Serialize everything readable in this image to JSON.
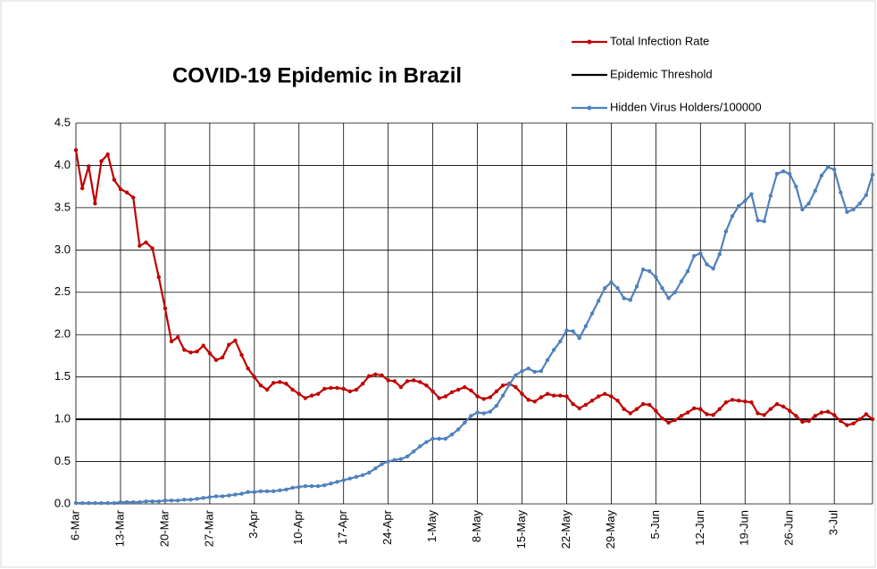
{
  "chart_data": {
    "type": "line",
    "title": "COVID-19 Epidemic in Brazil",
    "categories": [
      "6-Mar",
      null,
      null,
      null,
      null,
      null,
      null,
      "13-Mar",
      null,
      null,
      null,
      null,
      null,
      null,
      "20-Mar",
      null,
      null,
      null,
      null,
      null,
      null,
      "27-Mar",
      null,
      null,
      null,
      null,
      null,
      null,
      "3-Apr",
      null,
      null,
      null,
      null,
      null,
      null,
      "10-Apr",
      null,
      null,
      null,
      null,
      null,
      null,
      "17-Apr",
      null,
      null,
      null,
      null,
      null,
      null,
      "24-Apr",
      null,
      null,
      null,
      null,
      null,
      null,
      "1-May",
      null,
      null,
      null,
      null,
      null,
      null,
      "8-May",
      null,
      null,
      null,
      null,
      null,
      null,
      "15-May",
      null,
      null,
      null,
      null,
      null,
      null,
      "22-May",
      null,
      null,
      null,
      null,
      null,
      null,
      "29-May",
      null,
      null,
      null,
      null,
      null,
      null,
      "5-Jun",
      null,
      null,
      null,
      null,
      null,
      null,
      "12-Jun",
      null,
      null,
      null,
      null,
      null,
      null,
      "19-Jun",
      null,
      null,
      null,
      null,
      null,
      null,
      "26-Jun",
      null,
      null,
      null,
      null,
      null,
      null,
      "3-Jul",
      null,
      null,
      null,
      null,
      null,
      null
    ],
    "series": [
      {
        "name": "Total Infection Rate",
        "color": "#c00000",
        "values": [
          4.18,
          3.73,
          3.99,
          3.55,
          4.05,
          4.13,
          3.83,
          3.72,
          3.68,
          3.62,
          3.05,
          3.09,
          3.02,
          2.68,
          2.31,
          1.92,
          1.97,
          1.82,
          1.79,
          1.8,
          1.87,
          1.78,
          1.7,
          1.73,
          1.88,
          1.93,
          1.76,
          1.6,
          1.5,
          1.4,
          1.35,
          1.43,
          1.44,
          1.42,
          1.35,
          1.3,
          1.25,
          1.28,
          1.3,
          1.36,
          1.37,
          1.37,
          1.36,
          1.33,
          1.35,
          1.42,
          1.51,
          1.53,
          1.52,
          1.46,
          1.45,
          1.38,
          1.45,
          1.46,
          1.44,
          1.4,
          1.33,
          1.25,
          1.27,
          1.32,
          1.35,
          1.38,
          1.34,
          1.27,
          1.24,
          1.26,
          1.33,
          1.4,
          1.42,
          1.38,
          1.3,
          1.23,
          1.21,
          1.26,
          1.3,
          1.28,
          1.28,
          1.27,
          1.18,
          1.13,
          1.17,
          1.22,
          1.27,
          1.3,
          1.27,
          1.22,
          1.12,
          1.07,
          1.12,
          1.18,
          1.17,
          1.1,
          1.01,
          0.96,
          0.99,
          1.04,
          1.08,
          1.13,
          1.12,
          1.06,
          1.05,
          1.12,
          1.2,
          1.23,
          1.22,
          1.21,
          1.2,
          1.07,
          1.05,
          1.12,
          1.18,
          1.15,
          1.1,
          1.04,
          0.97,
          0.98,
          1.04,
          1.08,
          1.09,
          1.05,
          0.98,
          0.93,
          0.95,
          1.0,
          1.06,
          1.0
        ]
      },
      {
        "name": "Hidden Virus Holders/100000",
        "color": "#4f81bd",
        "values": [
          0.01,
          0.01,
          0.01,
          0.01,
          0.01,
          0.01,
          0.01,
          0.02,
          0.02,
          0.02,
          0.02,
          0.03,
          0.03,
          0.03,
          0.04,
          0.04,
          0.04,
          0.05,
          0.05,
          0.06,
          0.07,
          0.08,
          0.09,
          0.09,
          0.1,
          0.11,
          0.12,
          0.14,
          0.14,
          0.15,
          0.15,
          0.15,
          0.16,
          0.17,
          0.19,
          0.2,
          0.21,
          0.21,
          0.21,
          0.22,
          0.24,
          0.26,
          0.28,
          0.3,
          0.32,
          0.34,
          0.37,
          0.42,
          0.47,
          0.5,
          0.52,
          0.53,
          0.56,
          0.62,
          0.68,
          0.73,
          0.77,
          0.77,
          0.77,
          0.82,
          0.88,
          0.96,
          1.04,
          1.08,
          1.07,
          1.09,
          1.16,
          1.28,
          1.41,
          1.52,
          1.57,
          1.6,
          1.56,
          1.57,
          1.7,
          1.82,
          1.92,
          2.05,
          2.04,
          1.96,
          2.1,
          2.25,
          2.4,
          2.55,
          2.62,
          2.55,
          2.43,
          2.41,
          2.57,
          2.77,
          2.75,
          2.68,
          2.55,
          2.43,
          2.5,
          2.63,
          2.75,
          2.93,
          2.96,
          2.83,
          2.78,
          2.95,
          3.22,
          3.4,
          3.52,
          3.58,
          3.66,
          3.35,
          3.34,
          3.64,
          3.9,
          3.93,
          3.9,
          3.75,
          3.48,
          3.55,
          3.7,
          3.88,
          3.98,
          3.95,
          3.68,
          3.45,
          3.48,
          3.55,
          3.65,
          3.89
        ]
      }
    ],
    "threshold": {
      "name": "Epidemic Threshold",
      "color": "#000000",
      "value": 1
    },
    "ylim": [
      0,
      4.5
    ],
    "yticks": [
      {
        "value": 0,
        "label": "0.0"
      },
      0.5,
      {
        "value": 1,
        "label": "1.0"
      },
      1.5,
      {
        "value": 2,
        "label": "2.0"
      },
      2.5,
      {
        "value": 3,
        "label": "3.0"
      },
      3.5,
      {
        "value": 4,
        "label": "4.0"
      },
      4.5
    ],
    "grid": true,
    "legend": "top-right"
  }
}
